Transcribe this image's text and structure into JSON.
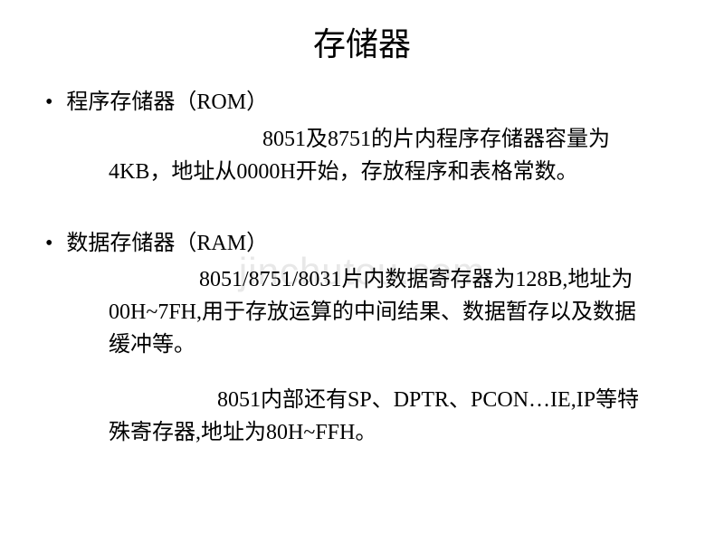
{
  "title": "存储器",
  "watermark": "jinchutou.com",
  "sections": [
    {
      "bullet": "•",
      "heading": "程序存储器（ROM）",
      "paragraphs": [
        "8051及8751的片内程序存储器容量为4KB，地址从0000H开始，存放程序和表格常数。"
      ]
    },
    {
      "bullet": "•",
      "heading": "数据存储器（RAM）",
      "paragraphs": [
        "8051/8751/8031片内数据寄存器为128B,地址为00H~7FH,用于存放运算的中间结果、数据暂存以及数据缓冲等。",
        "8051内部还有SP、DPTR、PCON…IE,IP等特殊寄存器,地址为80H~FFH。"
      ]
    }
  ],
  "styles": {
    "background_color": "#ffffff",
    "text_color": "#000000",
    "watermark_color": "#e8e8e8",
    "title_fontsize": 36,
    "body_fontsize": 24,
    "font_family": "SimSun"
  }
}
